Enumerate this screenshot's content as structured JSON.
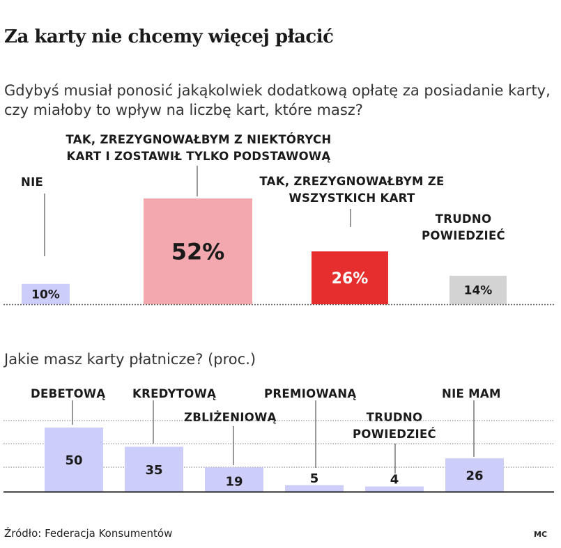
{
  "header": {
    "title": "Za karty nie chcemy więcej płacić",
    "question1": "Gdybyś musiał ponosić jakąkolwiek dodatkową opłatę za posiadanie karty, czy miałoby to wpływ na liczbę kart, które masz?",
    "question2": "Jakie masz karty płatnicze? (proc.)"
  },
  "footer": {
    "source": "Źródło: Federacja Konsumentów",
    "credit": "MC"
  },
  "colors": {
    "lavender": "#cccdf8",
    "pink": "#f2a8ae",
    "red": "#e62e2e",
    "grey": "#d3d3d3"
  },
  "chart_data": [
    {
      "type": "bar",
      "categories": [
        "NIE",
        "TAK, ZREZYGNOWAŁBYM Z NIEKTÓRYCH KART I ZOSTAWIŁ TYLKO PODSTAWOWĄ",
        "TAK, ZREZYGNOWAŁBYM ZE WSZYSTKICH KART",
        "TRUDNO POWIEDZIEĆ"
      ],
      "values": [
        10,
        52,
        26,
        14
      ],
      "data_labels": [
        "10%",
        "52%",
        "26%",
        "14%"
      ],
      "colors": [
        "#cccdf8",
        "#f2a8ae",
        "#e62e2e",
        "#d3d3d3"
      ],
      "ylim": [
        0,
        52
      ]
    },
    {
      "type": "bar",
      "categories": [
        "DEBETOWĄ",
        "KREDYTOWĄ",
        "ZBLIŻENIOWĄ",
        "PREMIOWANĄ",
        "TRUDNO POWIEDZIEĆ",
        "NIE MAM"
      ],
      "values": [
        50,
        35,
        19,
        5,
        4,
        26
      ],
      "data_labels": [
        "50",
        "35",
        "19",
        "5",
        "4",
        "26"
      ],
      "color": "#cccdf8",
      "ylim": [
        0,
        50
      ],
      "grid": true
    }
  ]
}
